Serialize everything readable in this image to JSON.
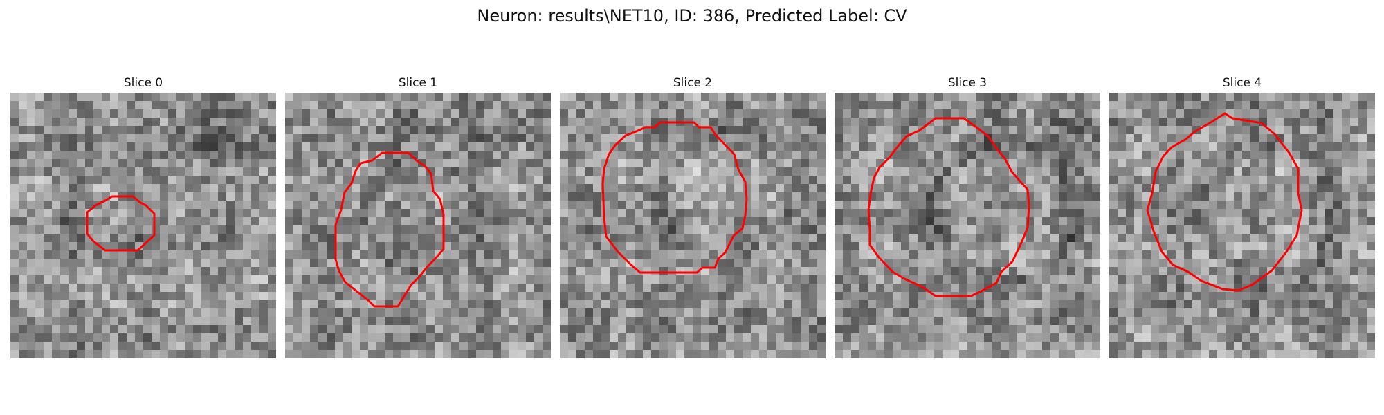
{
  "figure": {
    "title": "Neuron: results\\NET10, ID: 386, Predicted Label: CV",
    "contour_color": "#ff0000",
    "slices": [
      {
        "label": "Slice 0"
      },
      {
        "label": "Slice 1"
      },
      {
        "label": "Slice 2"
      },
      {
        "label": "Slice 3"
      },
      {
        "label": "Slice 4"
      }
    ]
  }
}
